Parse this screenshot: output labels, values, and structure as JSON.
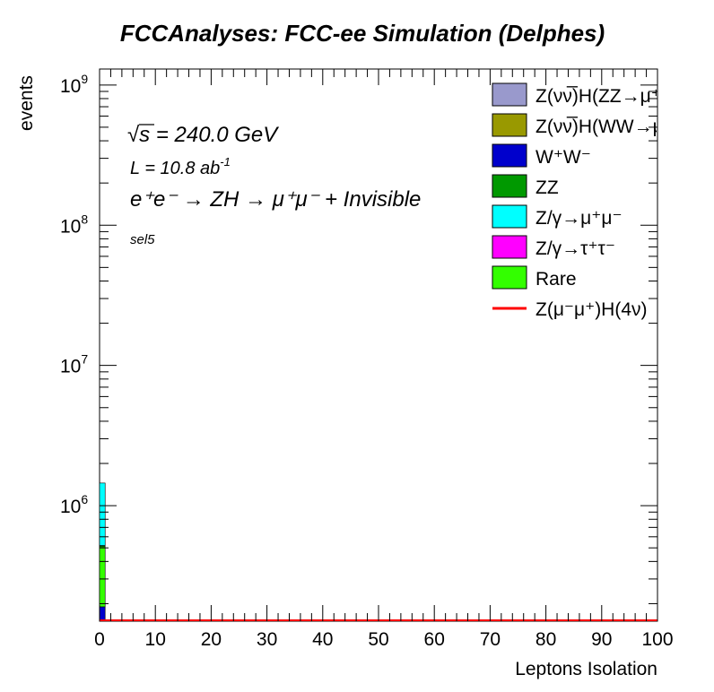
{
  "chart_data": {
    "type": "bar",
    "title": "FCCAnalyses: FCC-ee Simulation (Delphes)",
    "xlabel": "Leptons Isolation",
    "ylabel": "events",
    "xlim": [
      0,
      100
    ],
    "ylim": [
      150000,
      1300000000
    ],
    "yscale": "log",
    "x_ticks": [
      "0",
      "10",
      "20",
      "30",
      "40",
      "50",
      "60",
      "70",
      "80",
      "90",
      "100"
    ],
    "y_ticks": [
      {
        "base": "10",
        "exp": "6",
        "value": 1000000
      },
      {
        "base": "10",
        "exp": "7",
        "value": 10000000
      },
      {
        "base": "10",
        "exp": "8",
        "value": 100000000
      },
      {
        "base": "10",
        "exp": "9",
        "value": 1000000000
      }
    ],
    "bin_width": 1,
    "stack": [
      {
        "name": "W⁺W⁻",
        "color": "#0000cc",
        "x": 0,
        "value": 190000
      },
      {
        "name": "Rare",
        "color": "#33ff00",
        "x": 0,
        "value": 320000
      },
      {
        "name": "ZZ",
        "color": "#009900",
        "x": 0,
        "value": 10000
      },
      {
        "name": "Z/γ→μ⁺μ⁻",
        "color": "#00ffff",
        "x": 0,
        "value": 930000
      }
    ],
    "signal": {
      "name": "Z(μ⁻μ⁺)H(4ν)",
      "color": "#ff0000"
    },
    "legend_position": "top-right",
    "legend": [
      {
        "label": "Z(νν̅)H(ZZ→μ⁺μ⁻ν⁺",
        "color": "#9999cc",
        "style": "box"
      },
      {
        "label": "Z(νν̅)H(WW→μ⁺νμ",
        "color": "#999900",
        "style": "box"
      },
      {
        "label": "W⁺W⁻",
        "color": "#0000cc",
        "style": "box"
      },
      {
        "label": "ZZ",
        "color": "#009900",
        "style": "box"
      },
      {
        "label": "Z/γ→μ⁺μ⁻",
        "color": "#00ffff",
        "style": "box"
      },
      {
        "label": "Z/γ→τ⁺τ⁻",
        "color": "#ff00ff",
        "style": "box"
      },
      {
        "label": "Rare",
        "color": "#33ff00",
        "style": "box"
      },
      {
        "label": "Z(μ⁻μ⁺)H(4ν)",
        "color": "#ff0000",
        "style": "line"
      }
    ],
    "annotations": {
      "sqrt_s": "s",
      "energy": " = 240.0 GeV",
      "lumi_text": "L = 10.8 ab",
      "lumi_exp": "-1",
      "process": "e⁺e⁻ → ZH → μ⁺μ⁻ + Invisible",
      "selection": "sel5"
    }
  }
}
